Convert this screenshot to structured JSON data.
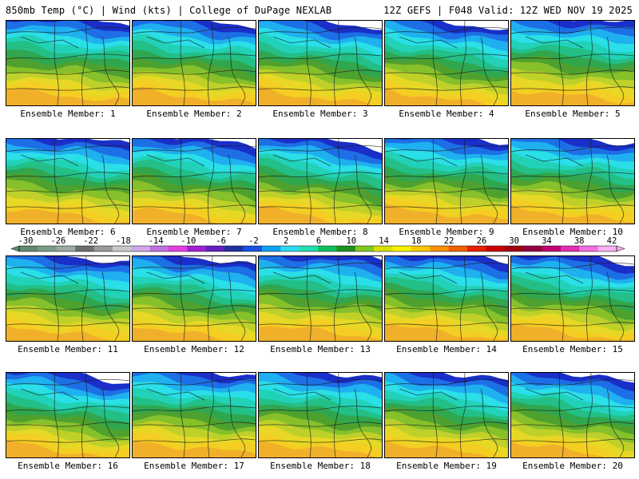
{
  "header": {
    "left": "850mb Temp (°C) | Wind (kts) | College of DuPage NEXLAB",
    "right": "12Z GEFS | F048 Valid: 12Z WED NOV 19 2025"
  },
  "panels": [
    {
      "label": "Ensemble Member: 1"
    },
    {
      "label": "Ensemble Member: 2"
    },
    {
      "label": "Ensemble Member: 3"
    },
    {
      "label": "Ensemble Member: 4"
    },
    {
      "label": "Ensemble Member: 5"
    },
    {
      "label": "Ensemble Member: 6"
    },
    {
      "label": "Ensemble Member: 7"
    },
    {
      "label": "Ensemble Member: 8"
    },
    {
      "label": "Ensemble Member: 9"
    },
    {
      "label": "Ensemble Member: 10"
    },
    {
      "label": "Ensemble Member: 11"
    },
    {
      "label": "Ensemble Member: 12"
    },
    {
      "label": "Ensemble Member: 13"
    },
    {
      "label": "Ensemble Member: 14"
    },
    {
      "label": "Ensemble Member: 15"
    },
    {
      "label": "Ensemble Member: 16"
    },
    {
      "label": "Ensemble Member: 17"
    },
    {
      "label": "Ensemble Member: 18"
    },
    {
      "label": "Ensemble Member: 19"
    },
    {
      "label": "Ensemble Member: 20"
    }
  ],
  "colorbar": {
    "ticks": [
      "-30",
      "-26",
      "-22",
      "-18",
      "-14",
      "-10",
      "-6",
      "-2",
      "2",
      "6",
      "10",
      "14",
      "18",
      "22",
      "26",
      "30",
      "34",
      "38",
      "42"
    ],
    "colors": [
      "#5e8a70",
      "#7a9c86",
      "#9aaaa0",
      "#6e6e6e",
      "#9a9a9a",
      "#c8c8c8",
      "#d0a8e8",
      "#c070e0",
      "#e040e0",
      "#a020d0",
      "#6020c0",
      "#2030a0",
      "#1850e0",
      "#10a0f0",
      "#30d8f0",
      "#20e0b0",
      "#10c060",
      "#209020",
      "#80c820",
      "#d8e000",
      "#f8f000",
      "#f8c800",
      "#f89000",
      "#f06000",
      "#e82000",
      "#c80000",
      "#a00010",
      "#900040",
      "#c00070",
      "#e030b0",
      "#f070e0",
      "#f8b0f0"
    ],
    "map_gradient": [
      "#1a2fc8",
      "#1d6fe6",
      "#1fb0f0",
      "#2adfe8",
      "#22d2b8",
      "#23bf86",
      "#30a64e",
      "#4ea12f",
      "#86c02a",
      "#bfd02a",
      "#e6d825",
      "#f4ce22",
      "#f0b02a"
    ]
  }
}
